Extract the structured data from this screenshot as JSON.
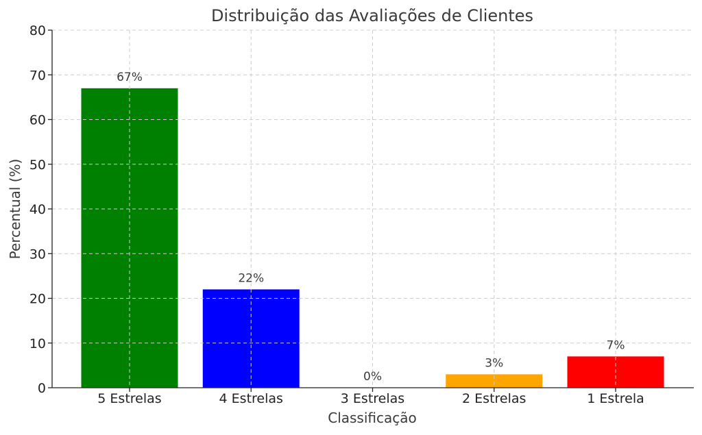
{
  "chart_data": {
    "type": "bar",
    "title": "Distribuição das Avaliações de Clientes",
    "xlabel": "Classificação",
    "ylabel": "Percentual (%)",
    "categories": [
      "5 Estrelas",
      "4 Estrelas",
      "3 Estrelas",
      "2 Estrelas",
      "1 Estrela"
    ],
    "values": [
      67,
      22,
      0,
      3,
      7
    ],
    "data_labels": [
      "67%",
      "22%",
      "0%",
      "3%",
      "7%"
    ],
    "colors": [
      "#008000",
      "#0000ff",
      "#4b0082",
      "#ffa500",
      "#ff0000"
    ],
    "ylim": [
      0,
      80
    ],
    "yticks": [
      0,
      10,
      20,
      30,
      40,
      50,
      60,
      70,
      80
    ],
    "grid": true,
    "legend": "none"
  }
}
